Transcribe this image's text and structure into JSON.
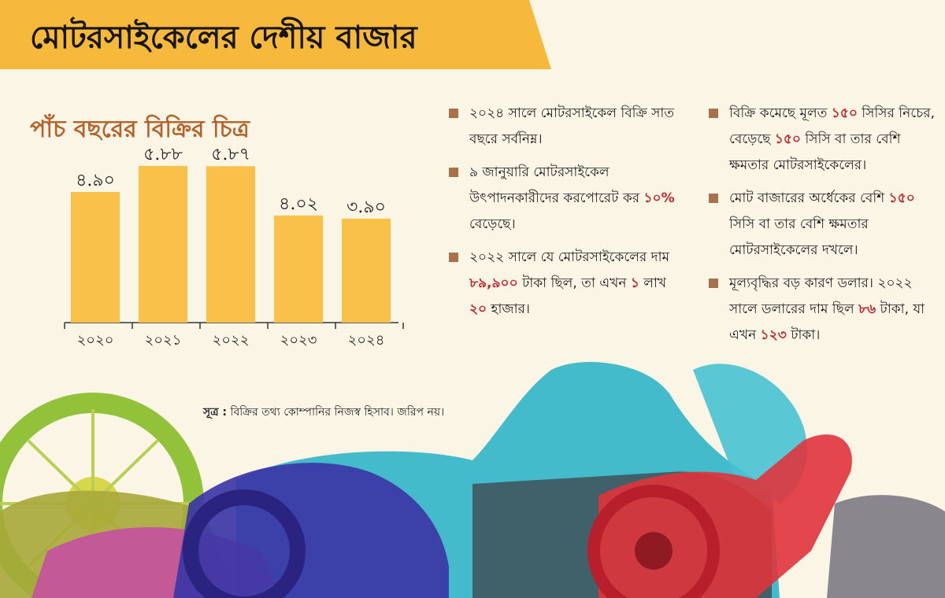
{
  "title": "মোটরসাইকেলের দেশীয় বাজার",
  "chart_data": {
    "type": "bar",
    "title": "পাঁচ বছরের বিক্রির চিত্র",
    "categories": [
      "২০২০",
      "২০২১",
      "২০২২",
      "২০২৩",
      "২০২৪"
    ],
    "values": [
      4.9,
      5.88,
      5.87,
      4.02,
      3.9
    ],
    "value_labels": [
      "৪.৯০",
      "৫.৮৮",
      "৫.৮৭",
      "৪.০২",
      "৩.৯০"
    ],
    "bar_color": "#f9c04a",
    "ylim": [
      0,
      6.2
    ],
    "grid": false,
    "legend": "none"
  },
  "notes_col1": [
    [
      {
        "t": "২০২৪ সালে মোটরসাইকেল বিক্রি সাত বছরে সর্বনিম্ন।"
      }
    ],
    [
      {
        "t": "৯ জানুয়ারি মোটরসাইকেল উৎপাদনকারীদের করপোরেট কর "
      },
      {
        "t": "১০%",
        "hl": true
      },
      {
        "t": " বেড়েছে।"
      }
    ],
    [
      {
        "t": "২০২২ সালে যে মোটরসাইকেলের দাম "
      },
      {
        "t": "৮৯,৯০০",
        "hl": true
      },
      {
        "t": " টাকা ছিল, তা এখন "
      },
      {
        "t": "১",
        "hl": true
      },
      {
        "t": " লাখ "
      },
      {
        "t": "২০",
        "hl": true
      },
      {
        "t": " হাজার।"
      }
    ]
  ],
  "notes_col2": [
    [
      {
        "t": "বিক্রি কমেছে মূলত "
      },
      {
        "t": "১৫০",
        "hl": true
      },
      {
        "t": " সিসির নিচের, বেড়েছে "
      },
      {
        "t": "১৫০",
        "hl": true
      },
      {
        "t": " সিসি বা তার বেশি ক্ষমতার মোটরসাইকেলের।"
      }
    ],
    [
      {
        "t": "মোট বাজারের অর্ধেকের বেশি "
      },
      {
        "t": "১৫০",
        "hl": true
      },
      {
        "t": " সিসি বা তার বেশি ক্ষমতার মোটরসাইকেলের দখলে।"
      }
    ],
    [
      {
        "t": "মূল্যবৃদ্ধির বড় কারণ ডলার। ২০২২ সালে ডলারের দাম ছিল "
      },
      {
        "t": "৮৬",
        "hl": true
      },
      {
        "t": " টাকা, যা এখন "
      },
      {
        "t": "১২৩",
        "hl": true
      },
      {
        "t": " টাকা।"
      }
    ]
  ],
  "source": {
    "label": "সূত্র :",
    "text": " বিক্রির তথ্য কোম্পানির নিজস্ব হিসাব। জরিপ নয়।"
  },
  "colors": {
    "background": "#fbf5e6",
    "banner": "#f6b93b",
    "subtitle": "#b5612a",
    "highlight": "#c0262c",
    "bullet": "#a8714a"
  }
}
